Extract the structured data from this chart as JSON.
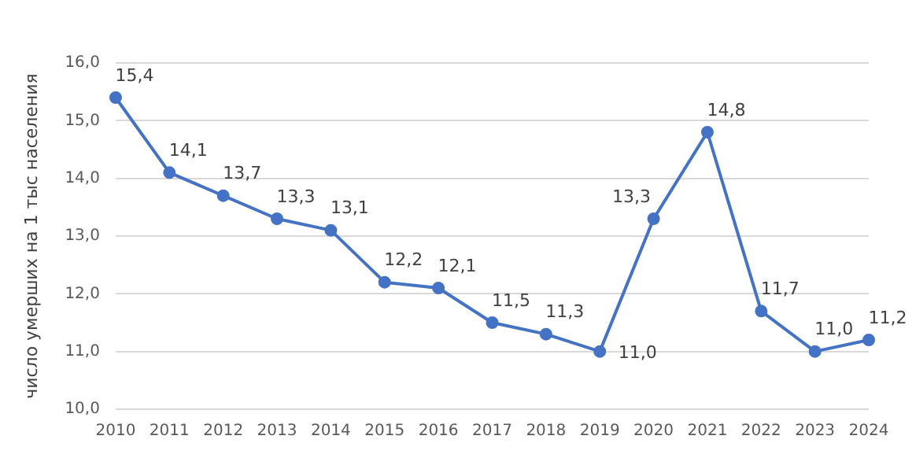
{
  "chart_data": {
    "type": "line",
    "ylabel": "число умерших на 1 тыс населения",
    "categories": [
      "2010",
      "2011",
      "2012",
      "2013",
      "2014",
      "2015",
      "2016",
      "2017",
      "2018",
      "2019",
      "2020",
      "2021",
      "2022",
      "2023",
      "2024"
    ],
    "series": [
      {
        "color": "#4472c4",
        "values": [
          15.4,
          14.1,
          13.7,
          13.3,
          13.1,
          12.2,
          12.1,
          11.5,
          11.3,
          11.0,
          13.3,
          14.8,
          11.7,
          11.0,
          11.2
        ],
        "value_labels": [
          "15,4",
          "14,1",
          "13,7",
          "13,3",
          "13,1",
          "12,2",
          "12,1",
          "11,5",
          "11,3",
          "11,0",
          "13,3",
          "14,8",
          "11,7",
          "11,0",
          "11,2"
        ]
      }
    ],
    "ylim": [
      10,
      16
    ],
    "yticks": [
      {
        "value": 10,
        "label": "10,0"
      },
      {
        "value": 11,
        "label": "11,0"
      },
      {
        "value": 12,
        "label": "12,0"
      },
      {
        "value": 13,
        "label": "13,0"
      },
      {
        "value": 14,
        "label": "14,0"
      },
      {
        "value": 15,
        "label": "15,0"
      },
      {
        "value": 16,
        "label": "16,0"
      }
    ],
    "grid": "y",
    "marker": "circle",
    "line_style": "solid",
    "legend": false
  }
}
